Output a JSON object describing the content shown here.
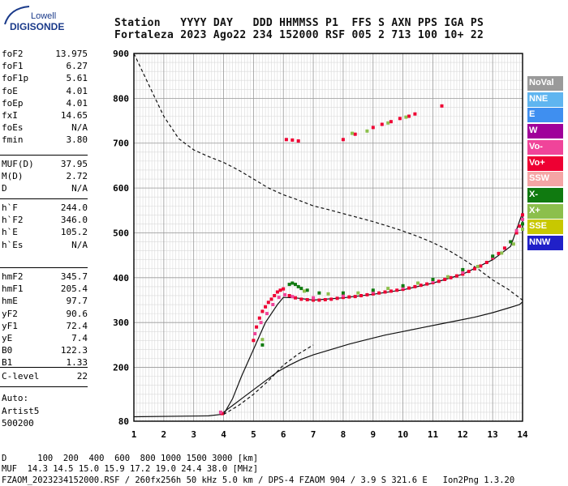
{
  "logo": {
    "line1": "Lowell",
    "line2": "DIGISONDE"
  },
  "header": {
    "line1": "Station   YYYY DAY   DDD HHMMSS P1  FFS S AXN PPS IGA PS",
    "line2": "Fortaleza 2023 Ago22 234 152000 RSF 005 2 713 100 10+ 22"
  },
  "scaled_params": {
    "group1": [
      {
        "k": "foF2",
        "v": "13.975"
      },
      {
        "k": "foF1",
        "v": "6.27"
      },
      {
        "k": "foF1p",
        "v": "5.61"
      },
      {
        "k": "foE",
        "v": "4.01"
      },
      {
        "k": "foEp",
        "v": "4.01"
      },
      {
        "k": "fxI",
        "v": "14.65"
      },
      {
        "k": "foEs",
        "v": "N/A"
      },
      {
        "k": "fmin",
        "v": "3.80"
      }
    ],
    "group2": [
      {
        "k": "MUF(D)",
        "v": "37.95"
      },
      {
        "k": "M(D)",
        "v": "2.72"
      },
      {
        "k": "D",
        "v": "N/A"
      }
    ],
    "group3": [
      {
        "k": "h`F",
        "v": "244.0"
      },
      {
        "k": "h`F2",
        "v": "346.0"
      },
      {
        "k": "h`E",
        "v": "105.2"
      },
      {
        "k": "h`Es",
        "v": "N/A"
      }
    ],
    "group4": [
      {
        "k": "hmF2",
        "v": "345.7"
      },
      {
        "k": "hmF1",
        "v": "205.4"
      },
      {
        "k": "hmE",
        "v": "97.7"
      },
      {
        "k": "yF2",
        "v": "90.6"
      },
      {
        "k": "yF1",
        "v": "72.4"
      },
      {
        "k": "yE",
        "v": "7.4"
      },
      {
        "k": "B0",
        "v": "122.3"
      },
      {
        "k": "B1",
        "v": "1.33"
      }
    ],
    "group5": [
      {
        "k": "C-level",
        "v": "22"
      }
    ],
    "autoscale": [
      "Auto:",
      "Artist5",
      "500200"
    ]
  },
  "legend": [
    {
      "label": "NoVal",
      "color": "#9a9a9a"
    },
    {
      "label": "NNE",
      "color": "#5fb5f0"
    },
    {
      "label": "E",
      "color": "#3f8ff0"
    },
    {
      "label": "W",
      "color": "#a0009a"
    },
    {
      "label": "Vo-",
      "color": "#f0449a"
    },
    {
      "label": "Vo+",
      "color": "#ee0033"
    },
    {
      "label": "SSW",
      "color": "#f5a5a5"
    },
    {
      "label": "X-",
      "color": "#107a10"
    },
    {
      "label": "X+",
      "color": "#8cbf4c"
    },
    {
      "label": "SSE",
      "color": "#c8c800"
    },
    {
      "label": "NNW",
      "color": "#2020c8"
    }
  ],
  "footer": {
    "line1": "D      100  200  400  600  800 1000 1500 3000 [km]",
    "line2": "MUF  14.3 14.5 15.0 15.9 17.2 19.0 24.4 38.0 [MHz]",
    "line3": "FZAOM_2023234152000.RSF / 260fx256h 50 kHz 5.0 km / DPS-4 FZAOM 904 / 3.9 S 321.6 E   Ion2Png 1.3.20"
  },
  "chart_data": {
    "type": "scatter",
    "title": "",
    "xlabel": "",
    "ylabel": "",
    "xlim": [
      1,
      14
    ],
    "ylim": [
      80,
      900
    ],
    "xticks": [
      1,
      2,
      3,
      4,
      5,
      6,
      7,
      8,
      9,
      10,
      11,
      12,
      13,
      14
    ],
    "yticks": [
      80,
      200,
      300,
      400,
      500,
      600,
      700,
      800,
      900
    ],
    "grid": true,
    "series": [
      {
        "color": "#ee0033",
        "points": [
          [
            3.95,
            97
          ],
          [
            5.0,
            260
          ],
          [
            5.1,
            290
          ],
          [
            5.2,
            310
          ],
          [
            5.3,
            325
          ],
          [
            5.4,
            335
          ],
          [
            5.5,
            345
          ],
          [
            5.6,
            352
          ],
          [
            5.7,
            360
          ],
          [
            5.8,
            368
          ],
          [
            5.9,
            372
          ],
          [
            6.0,
            375
          ],
          [
            6.2,
            360
          ],
          [
            6.4,
            355
          ],
          [
            6.6,
            352
          ],
          [
            6.8,
            351
          ],
          [
            7.0,
            350
          ],
          [
            7.2,
            350
          ],
          [
            7.4,
            351
          ],
          [
            7.6,
            352
          ],
          [
            7.8,
            354
          ],
          [
            8.0,
            356
          ],
          [
            8.2,
            357
          ],
          [
            8.4,
            358
          ],
          [
            8.6,
            360
          ],
          [
            8.8,
            362
          ],
          [
            9.0,
            364
          ],
          [
            9.2,
            366
          ],
          [
            9.4,
            368
          ],
          [
            9.6,
            370
          ],
          [
            9.8,
            372
          ],
          [
            10.0,
            374
          ],
          [
            10.2,
            377
          ],
          [
            10.4,
            380
          ],
          [
            10.6,
            383
          ],
          [
            10.8,
            386
          ],
          [
            11.0,
            389
          ],
          [
            11.2,
            392
          ],
          [
            11.4,
            396
          ],
          [
            11.6,
            400
          ],
          [
            11.8,
            404
          ],
          [
            12.0,
            408
          ],
          [
            12.2,
            414
          ],
          [
            12.4,
            420
          ],
          [
            12.6,
            426
          ],
          [
            12.8,
            434
          ],
          [
            13.0,
            444
          ],
          [
            13.2,
            454
          ],
          [
            13.4,
            466
          ],
          [
            13.6,
            480
          ],
          [
            13.8,
            500
          ],
          [
            13.9,
            515
          ],
          [
            14.0,
            540
          ],
          [
            6.1,
            708
          ],
          [
            6.3,
            707
          ],
          [
            6.5,
            705
          ],
          [
            8.0,
            708
          ],
          [
            8.4,
            720
          ],
          [
            9.0,
            735
          ],
          [
            9.3,
            742
          ],
          [
            9.6,
            748
          ],
          [
            9.9,
            755
          ],
          [
            10.2,
            760
          ],
          [
            10.4,
            765
          ],
          [
            11.3,
            783
          ]
        ]
      },
      {
        "color": "#f0449a",
        "points": [
          [
            5.05,
            275
          ],
          [
            5.25,
            300
          ],
          [
            5.45,
            320
          ],
          [
            5.65,
            340
          ],
          [
            5.85,
            356
          ],
          [
            6.05,
            362
          ],
          [
            6.3,
            358
          ],
          [
            7.0,
            355
          ],
          [
            8.0,
            360
          ],
          [
            9.0,
            368
          ],
          [
            10.0,
            378
          ],
          [
            11.0,
            392
          ],
          [
            12.0,
            412
          ],
          [
            13.0,
            446
          ],
          [
            13.8,
            505
          ],
          [
            14.0,
            530
          ],
          [
            3.9,
            100
          ]
        ]
      },
      {
        "color": "#107a10",
        "points": [
          [
            5.3,
            250
          ],
          [
            6.2,
            385
          ],
          [
            6.3,
            388
          ],
          [
            6.4,
            385
          ],
          [
            6.5,
            380
          ],
          [
            6.6,
            376
          ],
          [
            6.8,
            372
          ],
          [
            7.2,
            366
          ],
          [
            8.0,
            366
          ],
          [
            9.0,
            372
          ],
          [
            10.0,
            382
          ],
          [
            11.0,
            396
          ],
          [
            12.0,
            418
          ],
          [
            13.0,
            448
          ],
          [
            13.6,
            480
          ],
          [
            14.0,
            520
          ]
        ]
      },
      {
        "color": "#8cbf4c",
        "points": [
          [
            5.3,
            262
          ],
          [
            6.7,
            370
          ],
          [
            7.5,
            364
          ],
          [
            8.5,
            366
          ],
          [
            9.5,
            376
          ],
          [
            10.5,
            388
          ],
          [
            11.5,
            402
          ],
          [
            12.5,
            425
          ],
          [
            13.3,
            455
          ],
          [
            13.7,
            475
          ],
          [
            14.0,
            508
          ],
          [
            8.3,
            722
          ],
          [
            8.8,
            727
          ],
          [
            9.5,
            745
          ],
          [
            10.1,
            758
          ]
        ]
      }
    ],
    "curves": [
      {
        "name": "",
        "style": "solid",
        "points": [
          [
            1,
            90
          ],
          [
            3.5,
            92
          ],
          [
            3.9,
            95
          ],
          [
            4.1,
            105
          ],
          [
            4.3,
            115
          ],
          [
            4.6,
            130
          ],
          [
            5.0,
            150
          ],
          [
            5.4,
            170
          ],
          [
            5.8,
            190
          ],
          [
            6.2,
            205
          ],
          [
            6.6,
            218
          ],
          [
            7.0,
            228
          ],
          [
            7.6,
            240
          ],
          [
            8.2,
            252
          ],
          [
            8.8,
            262
          ],
          [
            9.4,
            272
          ],
          [
            10.0,
            280
          ],
          [
            10.6,
            288
          ],
          [
            11.2,
            296
          ],
          [
            11.8,
            304
          ],
          [
            12.4,
            312
          ],
          [
            13.0,
            322
          ],
          [
            13.5,
            332
          ],
          [
            13.9,
            340
          ],
          [
            14.0,
            346
          ]
        ]
      },
      {
        "name": "",
        "style": "solid",
        "points": [
          [
            4.0,
            95
          ],
          [
            4.3,
            130
          ],
          [
            4.6,
            180
          ],
          [
            5.0,
            240
          ],
          [
            5.4,
            300
          ],
          [
            5.8,
            340
          ],
          [
            6.0,
            356
          ],
          [
            6.4,
            355
          ],
          [
            7.0,
            350
          ],
          [
            8.0,
            355
          ],
          [
            9.0,
            363
          ],
          [
            10.0,
            373
          ],
          [
            11.0,
            388
          ],
          [
            12.0,
            408
          ],
          [
            13.0,
            440
          ],
          [
            13.6,
            470
          ],
          [
            14.0,
            545
          ]
        ]
      },
      {
        "name": "",
        "style": "dashed",
        "points": [
          [
            1,
            900
          ],
          [
            1.5,
            830
          ],
          [
            2.0,
            760
          ],
          [
            2.5,
            710
          ],
          [
            3.0,
            685
          ],
          [
            3.5,
            670
          ],
          [
            4.0,
            657
          ],
          [
            4.5,
            640
          ],
          [
            5.0,
            620
          ],
          [
            5.5,
            600
          ],
          [
            6.0,
            585
          ],
          [
            6.5,
            573
          ],
          [
            7.0,
            560
          ],
          [
            7.5,
            552
          ],
          [
            8.0,
            543
          ],
          [
            8.5,
            534
          ],
          [
            9.0,
            525
          ],
          [
            9.5,
            515
          ],
          [
            10.0,
            504
          ],
          [
            10.5,
            492
          ],
          [
            11.0,
            478
          ],
          [
            11.5,
            462
          ],
          [
            12.0,
            442
          ],
          [
            12.5,
            420
          ],
          [
            13.0,
            395
          ],
          [
            13.5,
            375
          ],
          [
            14.0,
            350
          ]
        ]
      },
      {
        "name": "",
        "style": "dashed",
        "points": [
          [
            4.0,
            95
          ],
          [
            4.5,
            115
          ],
          [
            5.0,
            140
          ],
          [
            5.5,
            170
          ],
          [
            6.0,
            205
          ],
          [
            6.5,
            230
          ],
          [
            7.0,
            250
          ]
        ]
      }
    ]
  }
}
